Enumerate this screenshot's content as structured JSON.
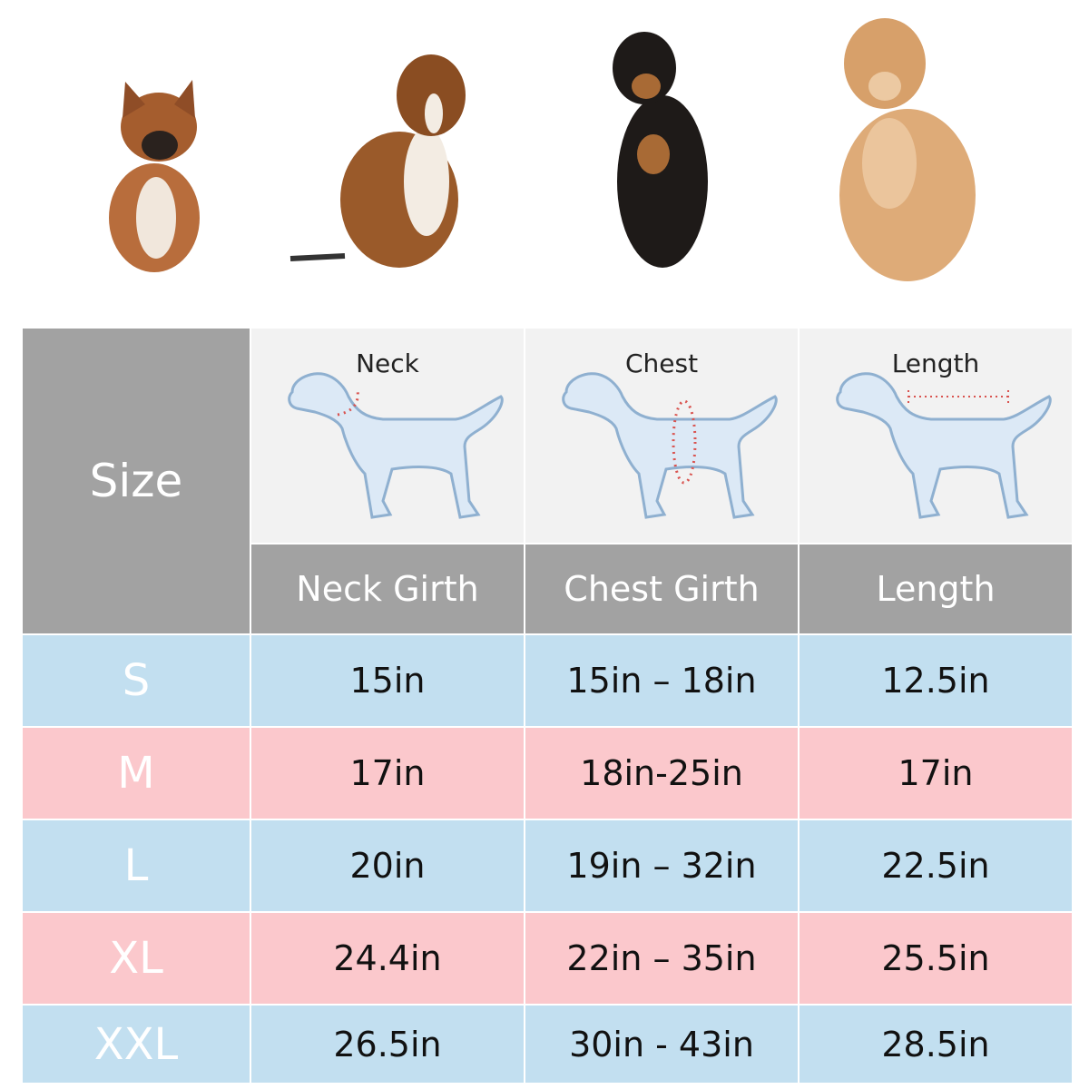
{
  "table": {
    "corner": "Size",
    "diagram_labels": [
      "Neck",
      "Chest",
      "Length"
    ],
    "columns": [
      "Neck Girth",
      "Chest Girth",
      "Length"
    ],
    "rows": [
      [
        "S",
        "15in",
        "15in – 18in",
        "12.5in"
      ],
      [
        "M",
        "17in",
        "18in-25in",
        "17in"
      ],
      [
        "L",
        "20in",
        "19in – 32in",
        "22.5in"
      ],
      [
        "XL",
        "24.4in",
        "22in – 35in",
        "25.5in"
      ],
      [
        "XXL",
        "26.5in",
        "30in - 43in",
        "28.5in"
      ]
    ]
  }
}
